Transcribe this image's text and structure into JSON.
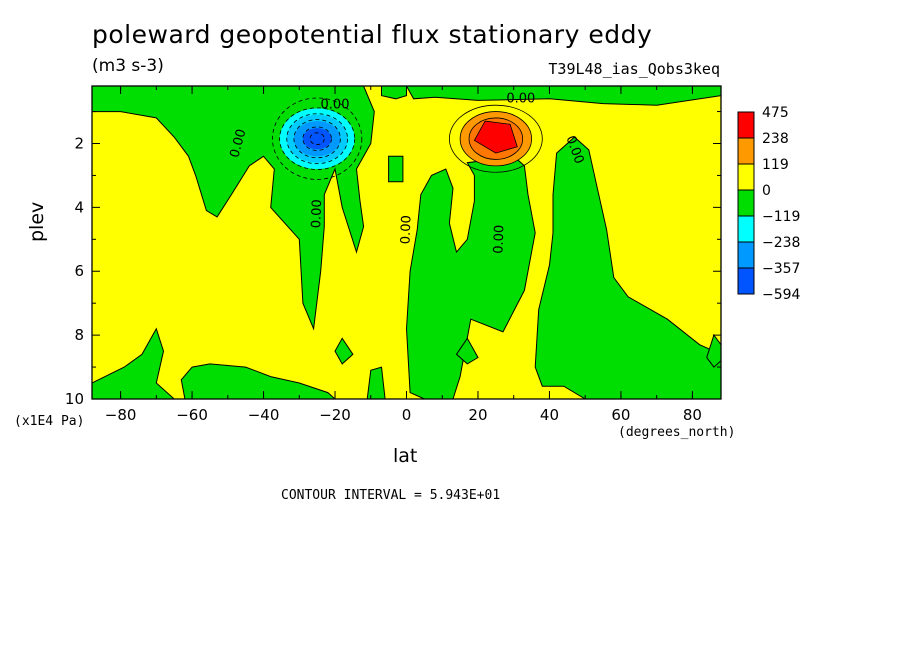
{
  "chart_data": {
    "type": "heatmap",
    "title": "poleward geopotential flux stationary eddy",
    "units": "(m3 s-3)",
    "run_id": "T39L48_ias_Qobs3keq",
    "xlabel": "lat",
    "x_units": "(degrees_north)",
    "ylabel": "plev",
    "y_units": "(x1E4 Pa)",
    "contour_interval_text": "CONTOUR INTERVAL = 5.943E+01",
    "xlim": [
      -88,
      88
    ],
    "ylim": [
      10,
      0.2
    ],
    "x_ticks": [
      -80,
      -60,
      -40,
      -20,
      0,
      20,
      40,
      60,
      80
    ],
    "y_ticks": [
      2,
      4,
      6,
      8,
      10
    ],
    "legend": {
      "placement": "right",
      "levels": [
        "475",
        "238",
        "119",
        "0",
        "-119",
        "-238",
        "-357",
        "-594"
      ],
      "colors": [
        "#ff0000",
        "#ff9900",
        "#ffff00",
        "#00dd00",
        "#00ffff",
        "#0099ff",
        "#0055ff"
      ]
    },
    "contour_labels": [
      {
        "text": "0.00",
        "lat": -20,
        "plev": 0.8,
        "angle": 0
      },
      {
        "text": "0.00",
        "lat": 32,
        "plev": 0.6,
        "angle": 0
      },
      {
        "text": "0.00",
        "lat": -47,
        "plev": 2.0,
        "angle": -75
      },
      {
        "text": "0.00",
        "lat": 47,
        "plev": 2.2,
        "angle": 70
      },
      {
        "text": "0.00",
        "lat": -25,
        "plev": 4.2,
        "angle": -88
      },
      {
        "text": "0.00",
        "lat": 0,
        "plev": 4.7,
        "angle": -88
      },
      {
        "text": "0.00",
        "lat": 26,
        "plev": 5.0,
        "angle": -88
      }
    ],
    "extremes": [
      {
        "kind": "min",
        "lat": -25,
        "plev": 1.9
      },
      {
        "kind": "max",
        "lat": 25,
        "plev": 1.9
      }
    ]
  }
}
